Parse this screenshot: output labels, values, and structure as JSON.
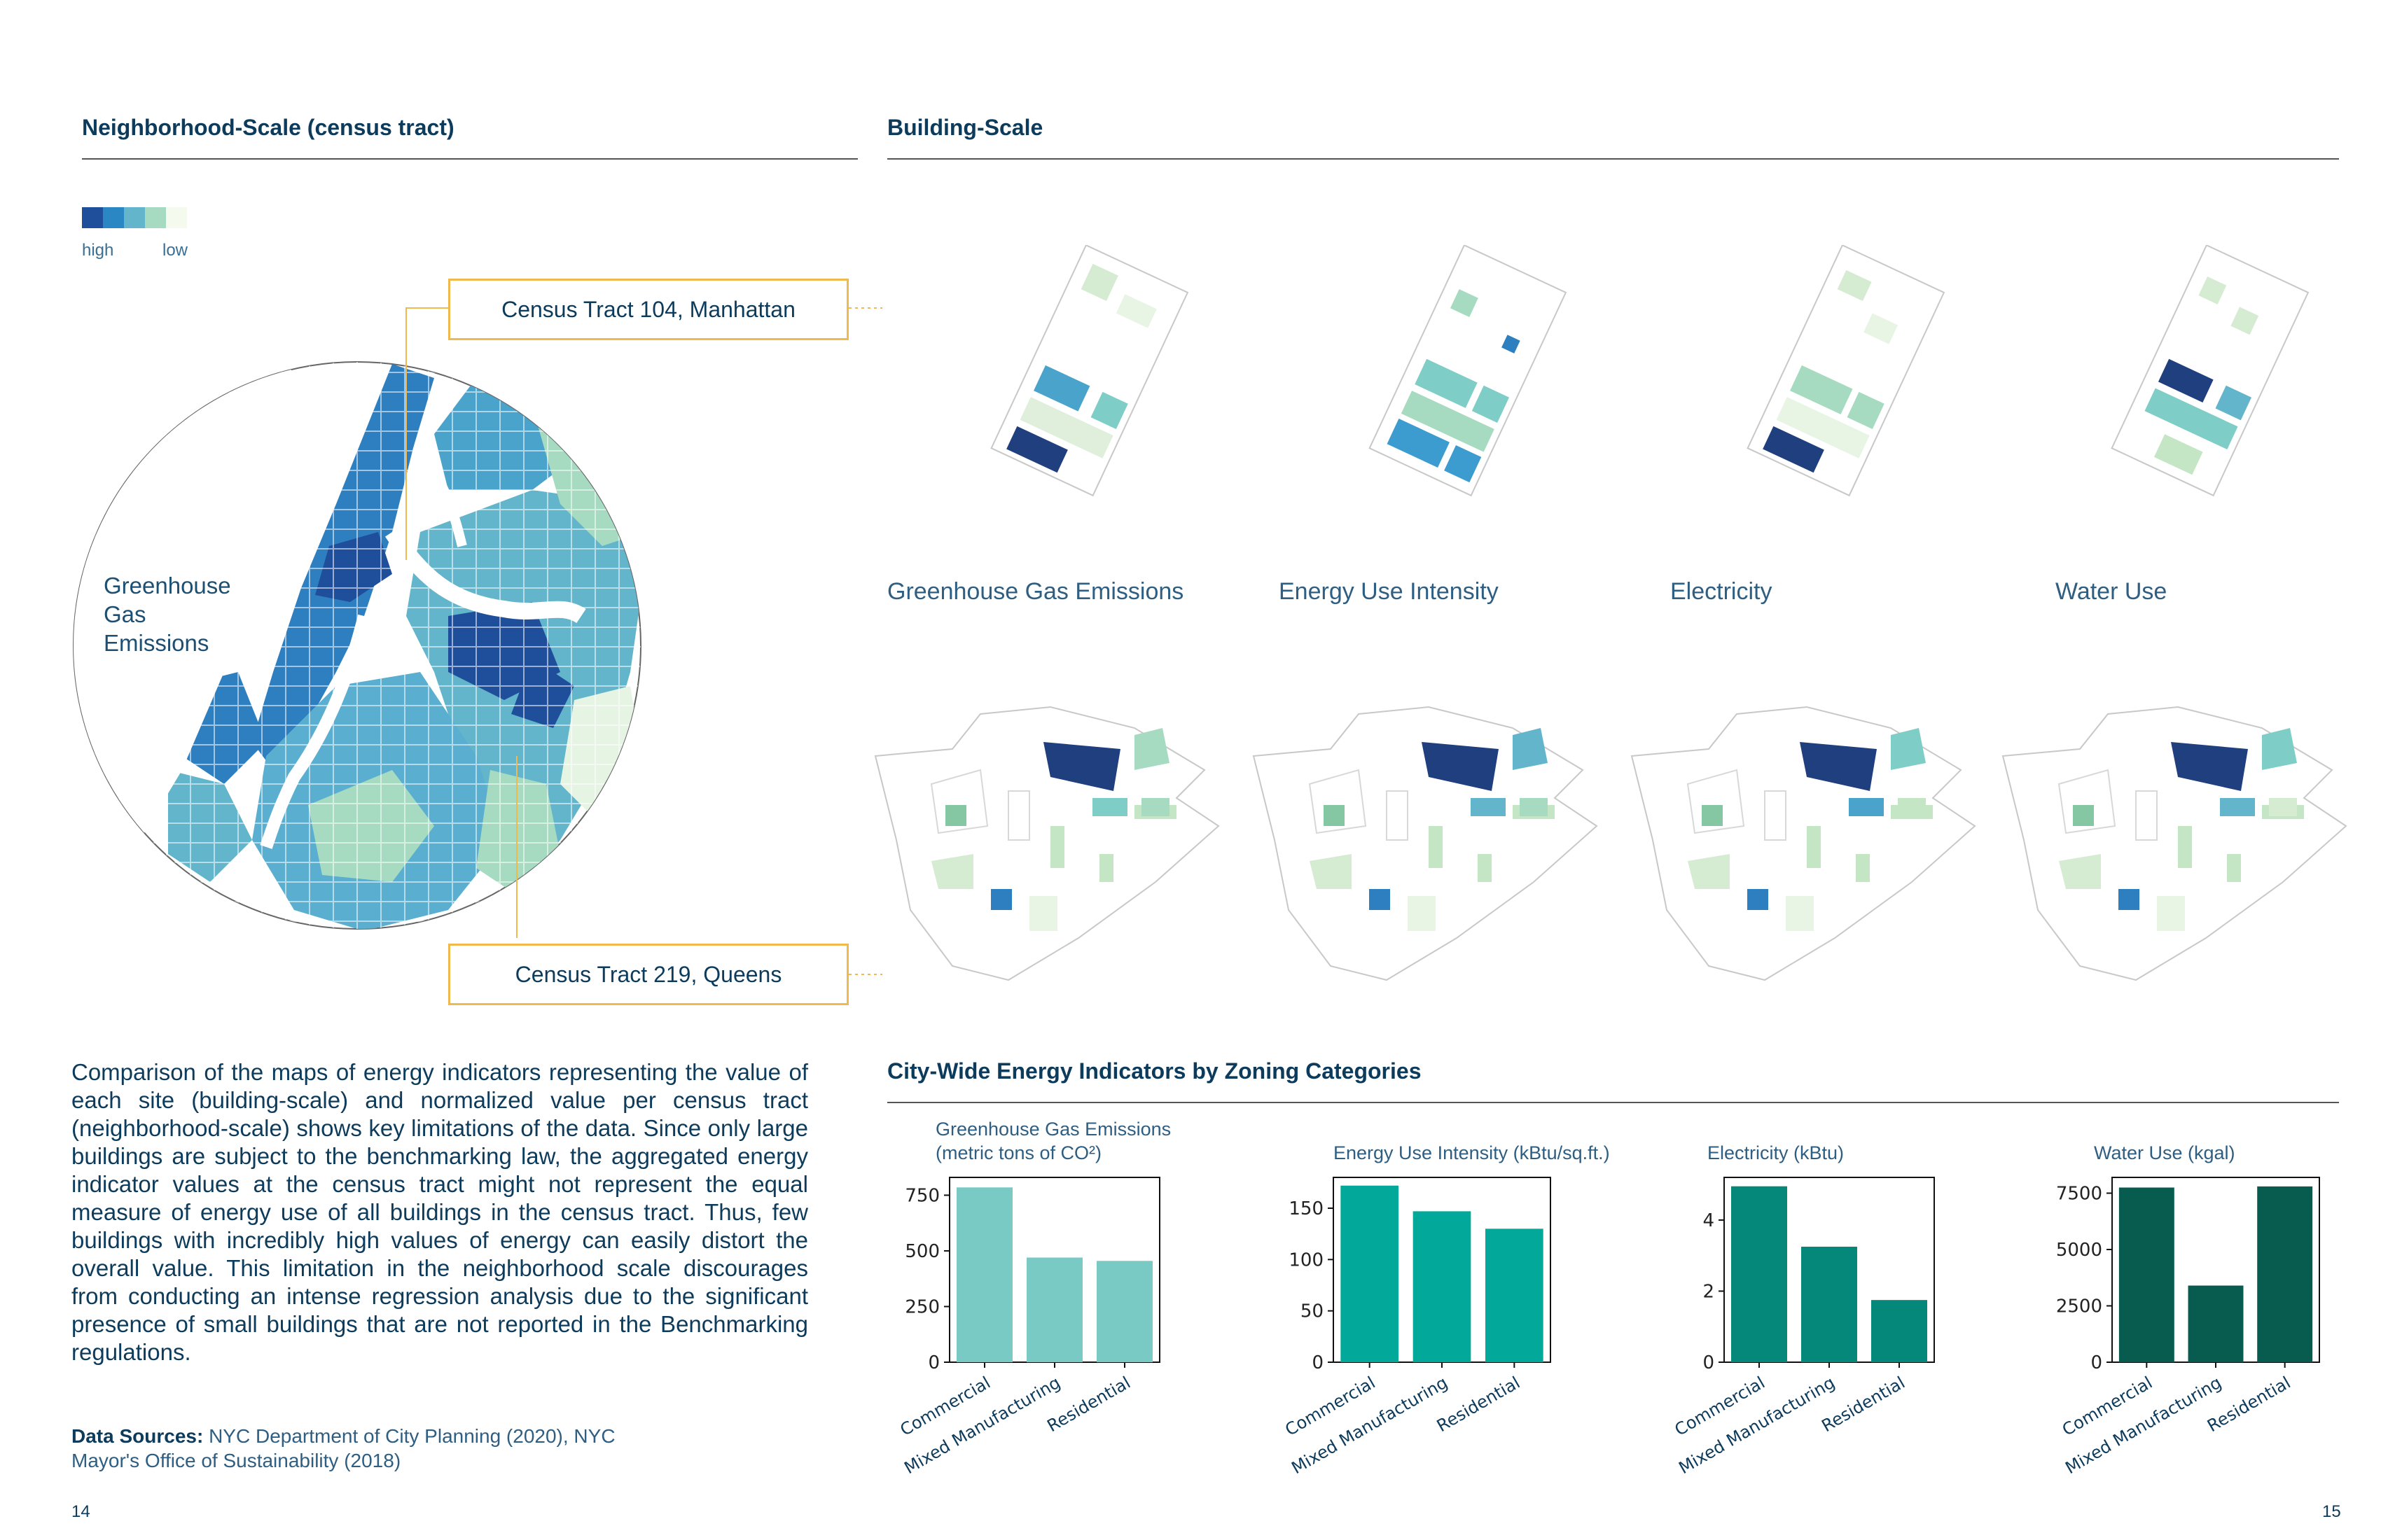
{
  "left": {
    "section_title": "Neighborhood-Scale (census tract)",
    "legend": {
      "high": "high",
      "low": "low",
      "colors": [
        "#1f4e9a",
        "#2b86c4",
        "#63b5cb",
        "#a6dbc1",
        "#f5faef"
      ]
    },
    "callout_top": "Census Tract 104, Manhattan",
    "callout_bottom": "Census Tract 219, Queens",
    "map_label": [
      "Greenhouse",
      "Gas",
      "Emissions"
    ],
    "paragraph": "Comparison of the maps of energy indicators representing the value of each site (building-scale) and normalized value per census tract (neighborhood-scale) shows key limitations of the data. Since only large buildings are subject to the benchmarking law, the aggregated energy indicator values at the census tract might not represent the equal measure of energy use of all buildings in the census tract. Thus, few buildings with incredibly high values of energy can easily distort the overall value. This limitation in the neighborhood scale discourages from conducting an intense regression analysis due to the significant presence of small buildings that are not reported in the Benchmarking regulations.",
    "sources_label": "Data Sources:",
    "sources_text": "NYC Department of City Planning (2020), NYC Mayor's Office of Sustainability (2018)",
    "page_number": "14"
  },
  "right": {
    "section_title": "Building-Scale",
    "panel_labels": [
      "Greenhouse Gas Emissions",
      "Energy Use Intensity",
      "Electricity",
      "Water Use"
    ],
    "charts_title": "City-Wide Energy Indicators by Zoning Categories",
    "page_number": "15"
  },
  "chart_data": [
    {
      "type": "bar",
      "title": "Greenhouse Gas Emissions",
      "title_line2": "(metric tons of CO²)",
      "categories": [
        "Commercial",
        "Mixed Manufacturing",
        "Residential"
      ],
      "values": [
        785,
        470,
        455
      ],
      "ylim": [
        0,
        830
      ],
      "yticks": [
        0,
        250,
        500,
        750
      ],
      "color": "#79c9c5"
    },
    {
      "type": "bar",
      "title": "Energy Use Intensity (kBtu/sq.ft.)",
      "categories": [
        "Commercial",
        "Mixed Manufacturing",
        "Residential"
      ],
      "values": [
        172,
        147,
        130
      ],
      "ylim": [
        0,
        180
      ],
      "yticks": [
        0,
        50,
        100,
        150
      ],
      "color": "#02a899"
    },
    {
      "type": "bar",
      "title": "Electricity (kBtu)",
      "categories": [
        "Commercial",
        "Mixed Manufacturing",
        "Residential"
      ],
      "values": [
        4.95,
        3.25,
        1.75
      ],
      "ylim": [
        0,
        5.2
      ],
      "yticks": [
        0,
        2,
        4
      ],
      "color": "#05877a"
    },
    {
      "type": "bar",
      "title": "Water Use (kgal)",
      "categories": [
        "Commercial",
        "Mixed Manufacturing",
        "Residential"
      ],
      "values": [
        7750,
        3400,
        7800
      ],
      "ylim": [
        0,
        8200
      ],
      "yticks": [
        0,
        2500,
        5000,
        7500
      ],
      "color": "#075b4f"
    }
  ]
}
